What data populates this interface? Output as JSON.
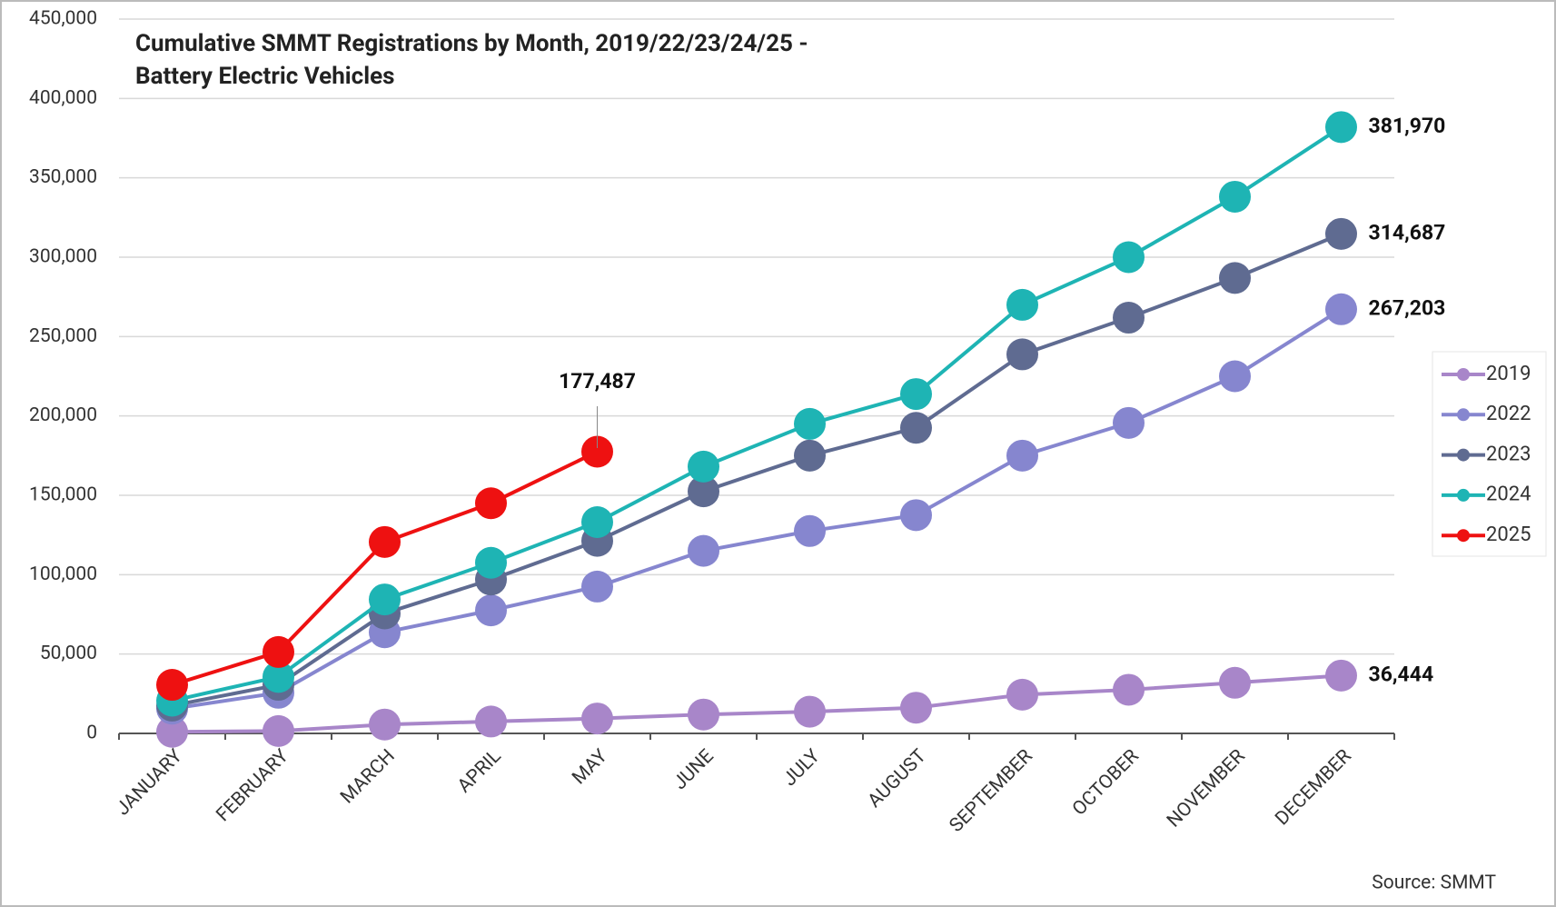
{
  "chart_data": {
    "type": "line",
    "title": [
      "Cumulative SMMT Registrations by Month, 2019/22/23/24/25 -",
      "Battery Electric Vehicles"
    ],
    "source": "Source: SMMT",
    "categories": [
      "JANUARY",
      "FEBRUARY",
      "MARCH",
      "APRIL",
      "MAY",
      "JUNE",
      "JULY",
      "AUGUST",
      "SEPTEMBER",
      "OCTOBER",
      "NOVEMBER",
      "DECEMBER"
    ],
    "ylim": [
      0,
      450000
    ],
    "yticks": [
      0,
      {
        "value": 50000,
        "label": "50,000"
      },
      {
        "value": 100000,
        "label": "100,000"
      },
      {
        "value": 150000,
        "label": "150,000"
      },
      {
        "value": 200000,
        "label": "200,000"
      },
      {
        "value": 250000,
        "label": "250,000"
      },
      {
        "value": 300000,
        "label": "300,000"
      },
      {
        "value": 350000,
        "label": "350,000"
      },
      {
        "value": 400000,
        "label": "400,000"
      },
      {
        "value": 450000,
        "label": "450,000"
      }
    ],
    "grid": true,
    "legend": "right",
    "series": [
      {
        "name": "2019",
        "color": "#a886c9",
        "values": [
          1000,
          1500,
          5600,
          7500,
          9400,
          11900,
          13700,
          16200,
          24400,
          27500,
          31900,
          36444
        ],
        "value_labels": [
          null,
          null,
          null,
          null,
          null,
          null,
          null,
          null,
          null,
          null,
          null,
          "36,444"
        ]
      },
      {
        "name": "2022",
        "color": "#8686cf",
        "values": [
          15600,
          25600,
          63700,
          77500,
          92500,
          115000,
          127500,
          137500,
          175000,
          195600,
          225000,
          267203
        ],
        "value_labels": [
          null,
          null,
          null,
          null,
          null,
          null,
          null,
          null,
          null,
          null,
          null,
          "267,203"
        ]
      },
      {
        "name": "2023",
        "color": "#5f6b91",
        "values": [
          17500,
          30600,
          75600,
          96900,
          121300,
          152500,
          175000,
          192500,
          238800,
          261900,
          286900,
          314687
        ],
        "value_labels": [
          null,
          null,
          null,
          null,
          null,
          null,
          null,
          null,
          null,
          null,
          null,
          "314,687"
        ]
      },
      {
        "name": "2024",
        "color": "#1eb4b4",
        "values": [
          20600,
          35600,
          84400,
          107500,
          133100,
          168100,
          195000,
          213800,
          270000,
          300000,
          338100,
          381970
        ],
        "value_labels": [
          null,
          null,
          null,
          null,
          null,
          null,
          null,
          null,
          null,
          null,
          null,
          "381,970"
        ]
      },
      {
        "name": "2025",
        "color": "#ee1111",
        "values": [
          30600,
          51300,
          120600,
          145000,
          177487,
          null,
          null,
          null,
          null,
          null,
          null,
          null
        ],
        "value_labels": [
          null,
          null,
          null,
          null,
          "177,487",
          null,
          null,
          null,
          null,
          null,
          null,
          null
        ]
      }
    ]
  }
}
